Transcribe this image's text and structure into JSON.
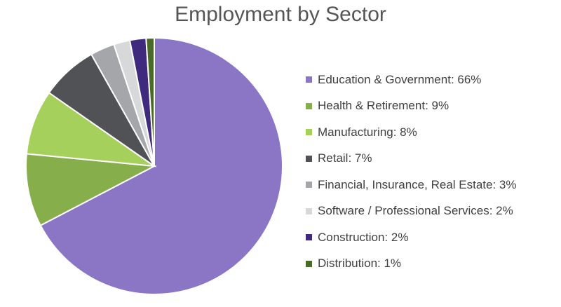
{
  "chart_data": {
    "type": "pie",
    "title": "Employment by Sector",
    "legend_position": "right",
    "slices": [
      {
        "label": "Education & Government: 66%",
        "name": "Education & Government",
        "value": 66,
        "color": "#8B76C6"
      },
      {
        "label": "Health & Retirement: 9%",
        "name": "Health & Retirement",
        "value": 9,
        "color": "#86AE4B"
      },
      {
        "label": "Manufacturing: 8%",
        "name": "Manufacturing",
        "value": 8,
        "color": "#A6D05C"
      },
      {
        "label": "Retail: 7%",
        "name": "Retail",
        "value": 7,
        "color": "#505256"
      },
      {
        "label": "Financial, Insurance, Real Estate: 3%",
        "name": "Financial, Insurance, Real Estate",
        "value": 3,
        "color": "#A4A6A9"
      },
      {
        "label": "Software / Professional Services: 2%",
        "name": "Software / Professional Services",
        "value": 2,
        "color": "#D7D8DA"
      },
      {
        "label": "Construction: 2%",
        "name": "Construction",
        "value": 2,
        "color": "#3F2A7E"
      },
      {
        "label": "Distribution: 1%",
        "name": "Distribution",
        "value": 1,
        "color": "#4A6A2A"
      }
    ]
  }
}
